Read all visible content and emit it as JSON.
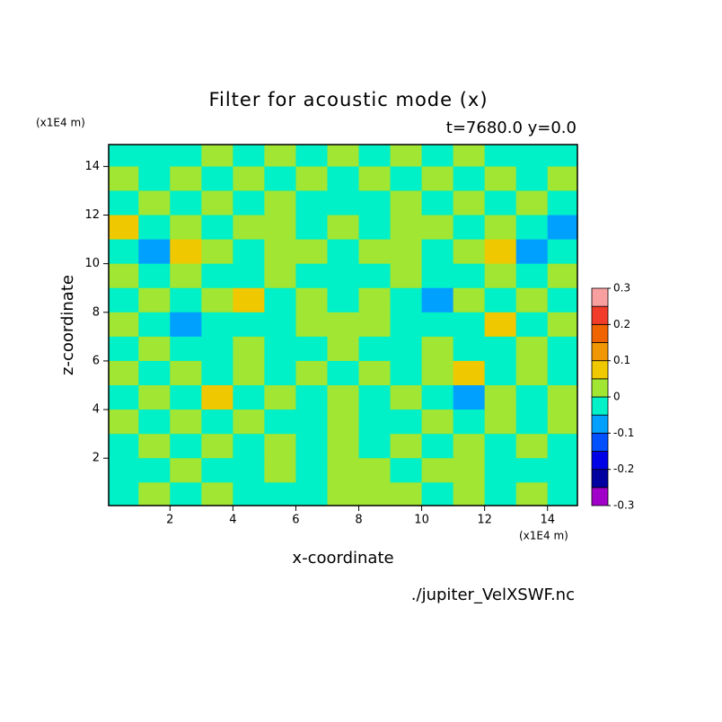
{
  "chart_data": {
    "type": "contour",
    "title": "Filter for acoustic mode (x)",
    "subtitle": "t=7680.0 y=0.0",
    "x_label": "x-coordinate",
    "y_label": "z-coordinate",
    "x_unit": "(x1E4 m)",
    "y_unit": "(x1E4 m)",
    "source": "./jupiter_VelXSWF.nc",
    "xlim": [
      0.05,
      14.95
    ],
    "ylim": [
      0.05,
      14.9
    ],
    "xticks": [
      2,
      4,
      6,
      8,
      10,
      12,
      14
    ],
    "yticks": [
      2,
      4,
      6,
      8,
      10,
      12,
      14
    ],
    "x": [
      0.5,
      1.5,
      2.5,
      3.5,
      4.5,
      5.5,
      6.5,
      7.5,
      8.5,
      9.5,
      10.5,
      11.5,
      12.5,
      13.5,
      14.5
    ],
    "y": [
      14.5,
      13.5,
      12.5,
      11.5,
      10.5,
      9.5,
      8.5,
      7.5,
      6.5,
      5.5,
      4.5,
      3.5,
      2.5,
      1.5,
      0.5
    ],
    "z": [
      [
        -0.02,
        -0.02,
        -0.02,
        0.02,
        -0.02,
        0.02,
        -0.02,
        0.02,
        -0.02,
        0.02,
        -0.02,
        0.02,
        -0.02,
        -0.02,
        -0.02
      ],
      [
        0.02,
        -0.02,
        0.02,
        -0.02,
        0.02,
        -0.02,
        0.02,
        -0.02,
        0.02,
        -0.02,
        0.02,
        -0.02,
        0.02,
        -0.02,
        0.02
      ],
      [
        -0.02,
        0.02,
        -0.02,
        0.02,
        -0.02,
        0.02,
        -0.02,
        -0.02,
        -0.02,
        0.02,
        -0.02,
        0.02,
        -0.02,
        0.02,
        -0.02
      ],
      [
        0.07,
        -0.02,
        0.02,
        -0.02,
        0.02,
        0.02,
        -0.02,
        0.02,
        -0.02,
        0.02,
        0.02,
        -0.02,
        0.02,
        -0.02,
        -0.07
      ],
      [
        -0.02,
        -0.07,
        0.07,
        0.02,
        -0.02,
        0.02,
        0.02,
        -0.02,
        0.02,
        0.02,
        -0.02,
        0.02,
        0.07,
        -0.07,
        -0.02
      ],
      [
        0.02,
        -0.02,
        0.02,
        -0.02,
        -0.02,
        0.02,
        -0.02,
        -0.02,
        -0.02,
        0.02,
        -0.02,
        -0.02,
        0.02,
        -0.02,
        0.02
      ],
      [
        -0.02,
        0.02,
        -0.02,
        0.02,
        0.07,
        -0.02,
        0.02,
        -0.02,
        0.02,
        -0.02,
        -0.07,
        0.02,
        -0.02,
        0.02,
        -0.02
      ],
      [
        0.02,
        -0.02,
        -0.07,
        -0.02,
        -0.02,
        -0.02,
        0.02,
        0.02,
        0.02,
        -0.02,
        -0.02,
        -0.02,
        0.07,
        -0.02,
        0.02
      ],
      [
        -0.02,
        0.02,
        -0.02,
        -0.02,
        0.02,
        -0.02,
        -0.02,
        0.02,
        -0.02,
        -0.02,
        0.02,
        -0.02,
        -0.02,
        0.02,
        -0.02
      ],
      [
        0.02,
        -0.02,
        0.02,
        -0.02,
        0.02,
        -0.02,
        0.02,
        -0.02,
        0.02,
        -0.02,
        0.02,
        0.07,
        -0.02,
        0.02,
        -0.02
      ],
      [
        -0.02,
        0.02,
        -0.02,
        0.07,
        -0.02,
        0.02,
        -0.02,
        0.02,
        -0.02,
        0.02,
        -0.02,
        -0.07,
        0.02,
        -0.02,
        0.02
      ],
      [
        0.02,
        -0.02,
        0.02,
        -0.02,
        0.02,
        -0.02,
        -0.02,
        0.02,
        -0.02,
        -0.02,
        0.02,
        -0.02,
        0.02,
        -0.02,
        0.02
      ],
      [
        -0.02,
        0.02,
        -0.02,
        0.02,
        -0.02,
        0.02,
        -0.02,
        0.02,
        -0.02,
        0.02,
        -0.02,
        0.02,
        -0.02,
        0.02,
        -0.02
      ],
      [
        -0.02,
        -0.02,
        0.02,
        -0.02,
        -0.02,
        0.02,
        -0.02,
        0.02,
        0.02,
        -0.02,
        0.02,
        0.02,
        -0.02,
        -0.02,
        -0.02
      ],
      [
        -0.02,
        0.02,
        -0.02,
        0.02,
        -0.02,
        -0.02,
        -0.02,
        0.02,
        0.02,
        0.02,
        -0.02,
        0.02,
        -0.02,
        0.02,
        -0.02
      ]
    ],
    "levels": [
      -0.3,
      -0.25,
      -0.2,
      -0.15,
      -0.1,
      -0.05,
      0,
      0.05,
      0.1,
      0.15,
      0.2,
      0.25,
      0.3
    ],
    "colors": [
      "#a000c8",
      "#0000a0",
      "#0000e6",
      "#0050ff",
      "#00a0ff",
      "#00f0c8",
      "#a0e632",
      "#f0c800",
      "#f09600",
      "#f06400",
      "#f03c28",
      "#f8a0a0"
    ],
    "colorbar_ticks": [
      -0.3,
      -0.2,
      -0.1,
      0,
      0.1,
      0.2,
      0.3
    ]
  }
}
